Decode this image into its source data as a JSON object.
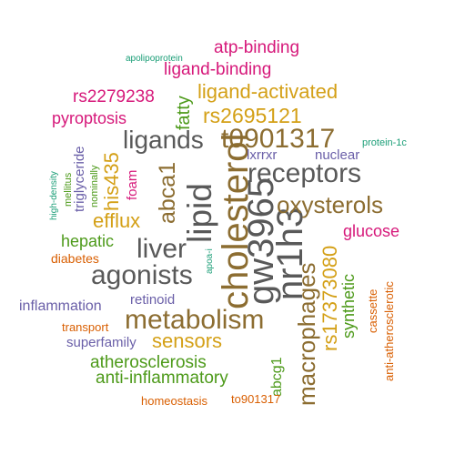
{
  "colors": {
    "gray": "#595959",
    "brown": "#8c6d31",
    "orange": "#d4a017",
    "magenta": "#d6187a",
    "green": "#4d9a1a",
    "purple": "#6a5fa8",
    "teal": "#1b9e77",
    "rust": "#d95f02"
  },
  "words": [
    {
      "text": "cholesterol",
      "color": "brown"
    },
    {
      "text": "gw3965",
      "color": "gray"
    },
    {
      "text": "nr1h3",
      "color": "gray"
    },
    {
      "text": "lipid",
      "color": "gray"
    },
    {
      "text": "metabolism",
      "color": "brown"
    },
    {
      "text": "agonists",
      "color": "gray"
    },
    {
      "text": "receptors",
      "color": "gray"
    },
    {
      "text": "t0901317",
      "color": "brown"
    },
    {
      "text": "liver",
      "color": "gray"
    },
    {
      "text": "ligands",
      "color": "gray"
    },
    {
      "text": "macrophages",
      "color": "brown"
    },
    {
      "text": "oxysterols",
      "color": "brown"
    },
    {
      "text": "rs17373080",
      "color": "orange"
    },
    {
      "text": "abca1",
      "color": "brown"
    },
    {
      "text": "sensors",
      "color": "orange"
    },
    {
      "text": "rs2695121",
      "color": "orange"
    },
    {
      "text": "ligand-activated",
      "color": "orange"
    },
    {
      "text": "his435",
      "color": "orange"
    },
    {
      "text": "efflux",
      "color": "orange"
    },
    {
      "text": "atherosclerosis",
      "color": "green"
    },
    {
      "text": "anti-inflammatory",
      "color": "green"
    },
    {
      "text": "ligand-binding",
      "color": "magenta"
    },
    {
      "text": "atp-binding",
      "color": "magenta"
    },
    {
      "text": "rs2279238",
      "color": "magenta"
    },
    {
      "text": "fatty",
      "color": "green"
    },
    {
      "text": "pyroptosis",
      "color": "magenta"
    },
    {
      "text": "hepatic",
      "color": "green"
    },
    {
      "text": "synthetic",
      "color": "green"
    },
    {
      "text": "glucose",
      "color": "magenta"
    },
    {
      "text": "inflammation",
      "color": "purple"
    },
    {
      "text": "abcg1",
      "color": "green"
    },
    {
      "text": "lxrrxr",
      "color": "purple"
    },
    {
      "text": "nuclear",
      "color": "purple"
    },
    {
      "text": "foam",
      "color": "magenta"
    },
    {
      "text": "triglyceride",
      "color": "purple"
    },
    {
      "text": "retinoid",
      "color": "purple"
    },
    {
      "text": "superfamily",
      "color": "purple"
    },
    {
      "text": "cassette",
      "color": "rust"
    },
    {
      "text": "anti-atherosclerotic",
      "color": "rust"
    },
    {
      "text": "diabetes",
      "color": "rust"
    },
    {
      "text": "transport",
      "color": "rust"
    },
    {
      "text": "homeostasis",
      "color": "rust"
    },
    {
      "text": "to901317",
      "color": "rust"
    },
    {
      "text": "nominally",
      "color": "green"
    },
    {
      "text": "mellitus",
      "color": "green"
    },
    {
      "text": "high-density",
      "color": "teal"
    },
    {
      "text": "apoa-i",
      "color": "teal"
    },
    {
      "text": "apolipoprotein",
      "color": "teal"
    },
    {
      "text": "protein-1c",
      "color": "teal"
    }
  ]
}
